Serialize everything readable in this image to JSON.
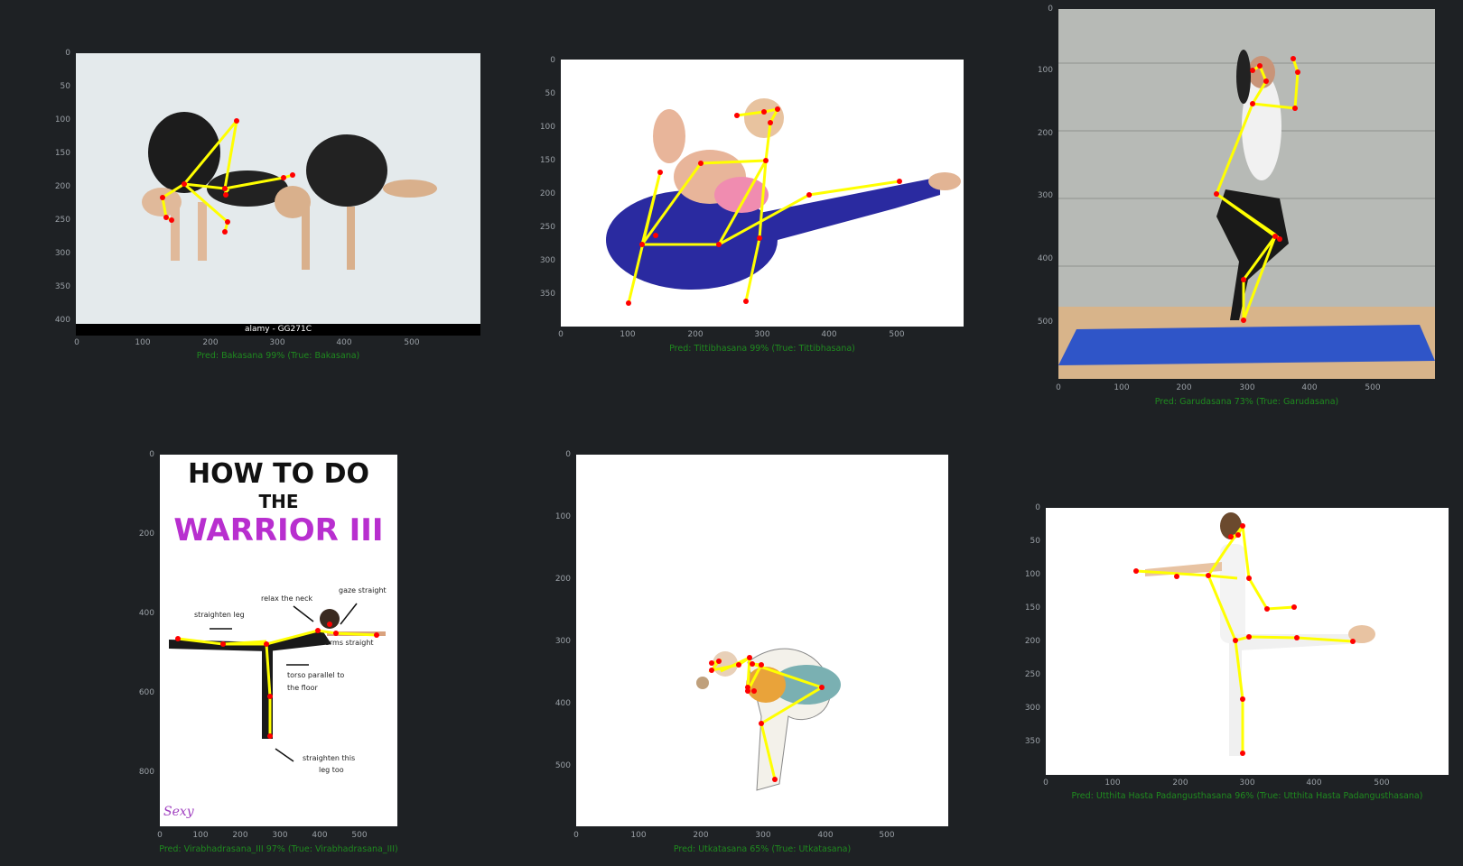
{
  "panels": [
    {
      "id": "bakasana",
      "caption": "Pred: Bakasana 99% (True: Bakasana)",
      "yticks": [
        "0",
        "50",
        "100",
        "150",
        "200",
        "250",
        "300",
        "350",
        "400"
      ],
      "xticks": [
        "0",
        "100",
        "200",
        "300",
        "400",
        "500"
      ],
      "watermark": "alamy - GG271C"
    },
    {
      "id": "tittibhasana",
      "caption": "Pred: Tittibhasana 99% (True: Tittibhasana)",
      "yticks": [
        "0",
        "50",
        "100",
        "150",
        "200",
        "250",
        "300",
        "350"
      ],
      "xticks": [
        "0",
        "100",
        "200",
        "300",
        "400",
        "500"
      ]
    },
    {
      "id": "garudasana",
      "caption": "Pred: Garudasana 73% (True: Garudasana)",
      "yticks": [
        "0",
        "100",
        "200",
        "300",
        "400",
        "500"
      ],
      "xticks": [
        "0",
        "100",
        "200",
        "300",
        "400",
        "500"
      ]
    },
    {
      "id": "virabhadrasana",
      "caption": "Pred: Virabhadrasana_III 97% (True: Virabhadrasana_III)",
      "yticks": [
        "0",
        "200",
        "400",
        "600",
        "800"
      ],
      "xticks": [
        "0",
        "100",
        "200",
        "300",
        "400",
        "500"
      ],
      "poster": {
        "line1": "HOW TO DO",
        "line2": "THE",
        "line3": "WARRIOR III",
        "notes": [
          "relax the neck",
          "gaze straight",
          "straighten leg",
          "arms straight",
          "torso parallel to",
          "the floor",
          "straighten this",
          "leg too"
        ],
        "logo": "Sexy"
      }
    },
    {
      "id": "utkatasana",
      "caption": "Pred: Utkatasana 65% (True: Utkatasana)",
      "yticks": [
        "0",
        "100",
        "200",
        "300",
        "400",
        "500"
      ],
      "xticks": [
        "0",
        "100",
        "200",
        "300",
        "400",
        "500"
      ]
    },
    {
      "id": "utthita",
      "caption": "Pred: Utthita Hasta Padangusthasana 96% (True: Utthita Hasta Padangusthasana)",
      "yticks": [
        "0",
        "50",
        "100",
        "150",
        "200",
        "250",
        "300",
        "350"
      ],
      "xticks": [
        "0",
        "100",
        "200",
        "300",
        "400",
        "500"
      ]
    }
  ],
  "colors": {
    "background": "#1e2124",
    "skeleton_line": "#ffff00",
    "keypoint": "#ff0000",
    "caption": "#1f8a1f",
    "tick": "#9aa0a6"
  }
}
